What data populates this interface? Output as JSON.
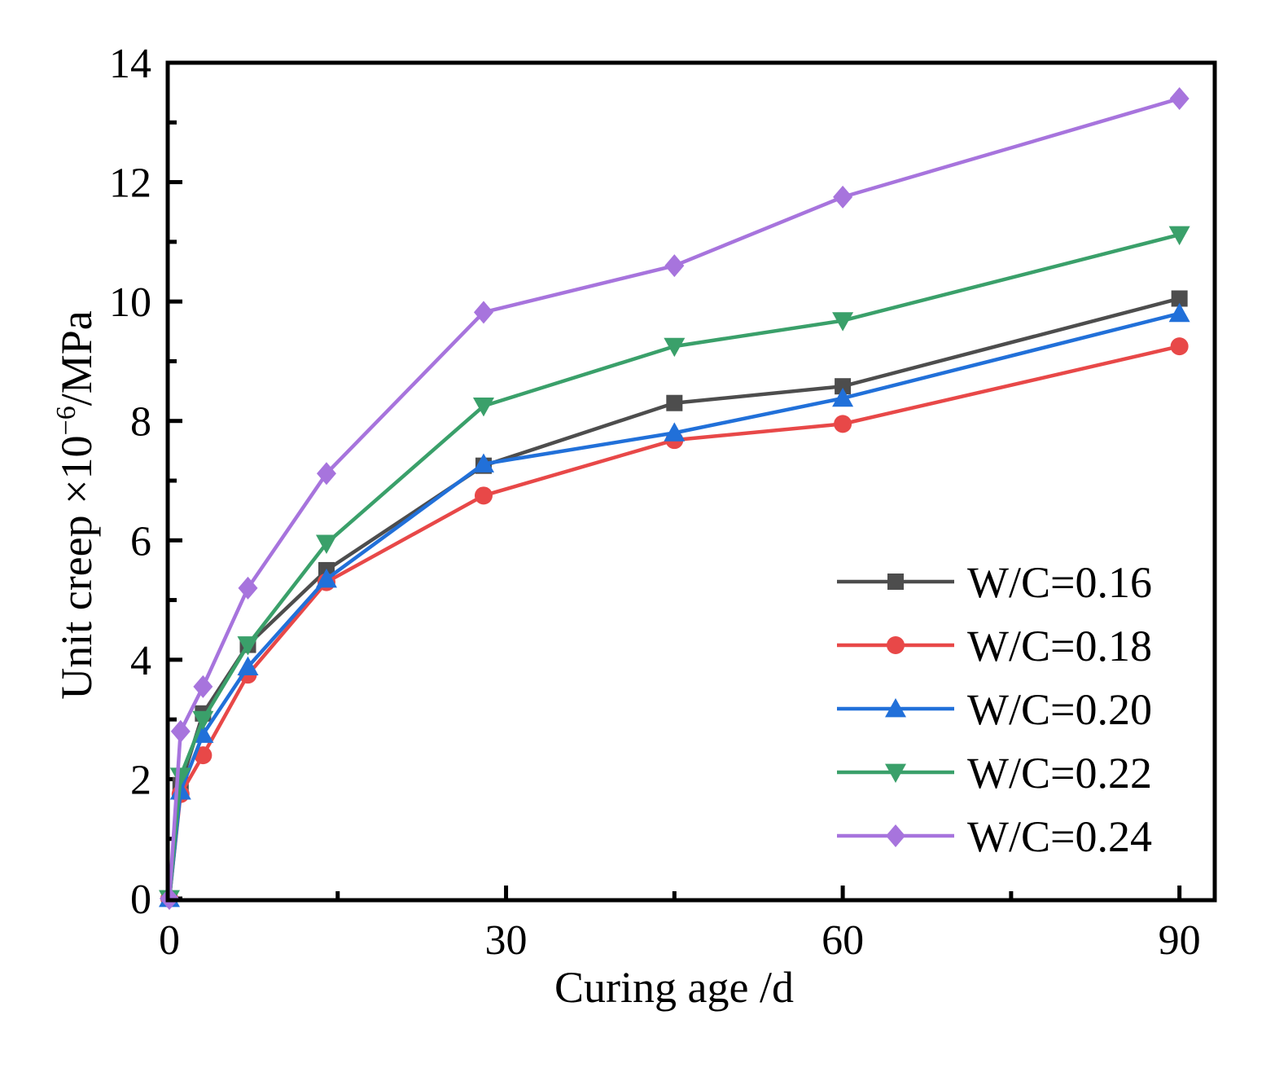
{
  "chart_data": {
    "type": "line",
    "title": "",
    "xlabel": "Curing age /d",
    "ylabel_prefix": "Unit creep ×10",
    "ylabel_exponent": "−6",
    "ylabel_suffix": "/MPa",
    "xlim": [
      0,
      93
    ],
    "ylim": [
      0,
      14
    ],
    "x_ticks": [
      0,
      30,
      60,
      90
    ],
    "y_ticks": [
      0,
      2,
      4,
      6,
      8,
      10,
      12,
      14
    ],
    "x": [
      0,
      1,
      3,
      7,
      14,
      28,
      45,
      60,
      90
    ],
    "legend_position": "lower-right",
    "series": [
      {
        "name": "W/C=0.16",
        "color": "#4d4d4d",
        "marker": "square",
        "values": [
          0,
          1.9,
          3.1,
          4.25,
          5.5,
          7.25,
          8.3,
          8.58,
          10.05
        ]
      },
      {
        "name": "W/C=0.18",
        "color": "#e84848",
        "marker": "circle",
        "values": [
          0,
          1.75,
          2.4,
          3.75,
          5.3,
          6.75,
          7.68,
          7.95,
          9.25
        ]
      },
      {
        "name": "W/C=0.20",
        "color": "#2170d9",
        "marker": "triangle-up",
        "values": [
          0,
          1.8,
          2.75,
          3.88,
          5.35,
          7.28,
          7.8,
          8.38,
          9.8
        ]
      },
      {
        "name": "W/C=0.22",
        "color": "#3aa06a",
        "marker": "triangle-down",
        "values": [
          0,
          2.05,
          3.0,
          4.25,
          5.95,
          8.25,
          9.25,
          9.68,
          11.12
        ]
      },
      {
        "name": "W/C=0.24",
        "color": "#a774dd",
        "marker": "diamond",
        "values": [
          0,
          2.8,
          3.55,
          5.2,
          7.12,
          9.82,
          10.6,
          11.75,
          13.4
        ]
      }
    ]
  }
}
